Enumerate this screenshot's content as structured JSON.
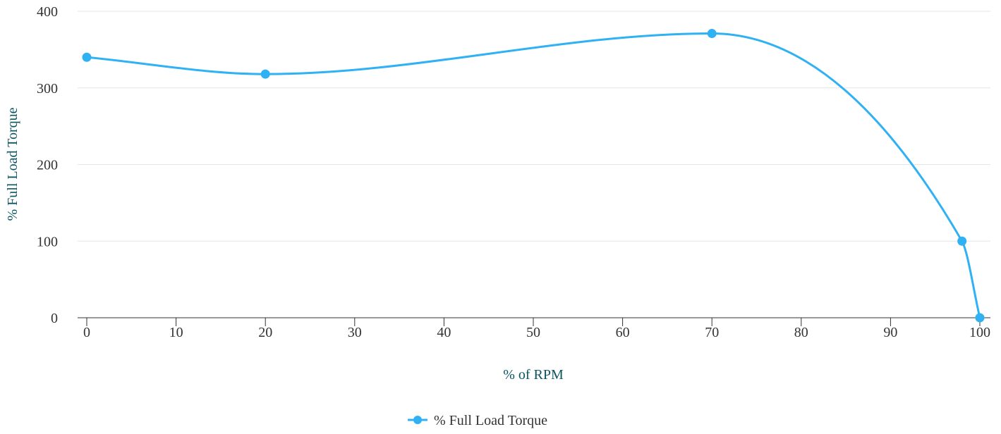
{
  "chart_data": {
    "type": "line",
    "smooth": true,
    "title": "",
    "xlabel": "% of RPM",
    "ylabel": "% Full Load Torque",
    "xlim": [
      0,
      100
    ],
    "ylim": [
      0,
      400
    ],
    "xticks": [
      0,
      10,
      20,
      30,
      40,
      50,
      60,
      70,
      80,
      90,
      100
    ],
    "yticks": [
      0,
      100,
      200,
      300,
      400
    ],
    "grid": "horizontal",
    "legend_position": "bottom-center",
    "series": [
      {
        "name": "% Full Load Torque",
        "color": "#2fb1f3",
        "marker": "circle",
        "x": [
          0,
          20,
          70,
          98,
          100
        ],
        "y": [
          340,
          318,
          371,
          100,
          0
        ]
      }
    ]
  }
}
